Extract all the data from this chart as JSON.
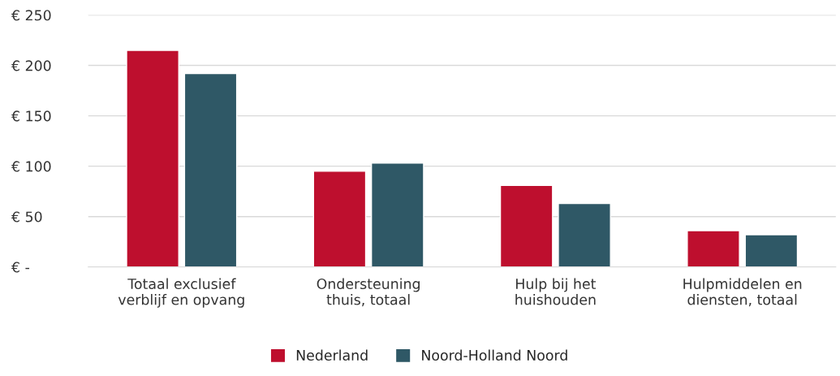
{
  "chart_data": {
    "type": "bar",
    "categories": [
      "Totaal exclusief\nverblijf en opvang",
      "Ondersteuning\nthuis, totaal",
      "Hulp bij het\nhuishouden",
      "Hulpmiddelen en\ndiensten, totaal"
    ],
    "series": [
      {
        "name": "Nederland",
        "color": "#be0f2e",
        "values": [
          215,
          95,
          81,
          36
        ]
      },
      {
        "name": "Noord-Holland Noord",
        "color": "#2f5866",
        "values": [
          192,
          103,
          63,
          32
        ]
      }
    ],
    "ylim": [
      0,
      250
    ],
    "yticks": [
      {
        "value": 0,
        "label": "€ -"
      },
      {
        "value": 50,
        "label": "€ 50"
      },
      {
        "value": 100,
        "label": "€ 100"
      },
      {
        "value": 150,
        "label": "€ 150"
      },
      {
        "value": 200,
        "label": "€ 200"
      },
      {
        "value": 250,
        "label": "€ 250"
      }
    ],
    "grid": "y",
    "legend": "bottom"
  }
}
